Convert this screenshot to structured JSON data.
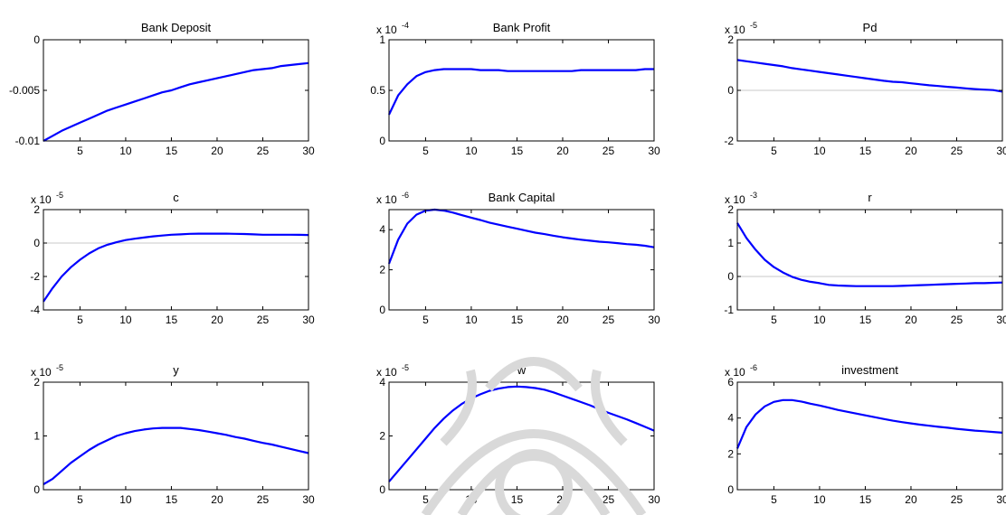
{
  "colors": {
    "line": "#0000ff",
    "zero_line": "#c8c8c8",
    "axes": "#000000",
    "watermark": "#d9d9d9"
  },
  "chart_data": [
    {
      "type": "line",
      "title": "Bank Deposit",
      "exponent": "",
      "xlim": [
        1,
        30
      ],
      "ylim": [
        -0.01,
        0
      ],
      "xticks": [
        "5",
        "10",
        "15",
        "20",
        "25",
        "30"
      ],
      "xtick_values": [
        5,
        10,
        15,
        20,
        25,
        30
      ],
      "yticks": [
        "-0.01",
        "-0.005",
        "0"
      ],
      "ytick_values": [
        -0.01,
        -0.005,
        0
      ],
      "zero_line": false,
      "x": [
        1,
        2,
        3,
        4,
        5,
        6,
        7,
        8,
        9,
        10,
        11,
        12,
        13,
        14,
        15,
        16,
        17,
        18,
        19,
        20,
        21,
        22,
        23,
        24,
        25,
        26,
        27,
        28,
        29,
        30
      ],
      "y": [
        -0.01,
        -0.0095,
        -0.009,
        -0.0086,
        -0.0082,
        -0.0078,
        -0.0074,
        -0.007,
        -0.0067,
        -0.0064,
        -0.0061,
        -0.0058,
        -0.0055,
        -0.0052,
        -0.005,
        -0.0047,
        -0.0044,
        -0.0042,
        -0.004,
        -0.0038,
        -0.0036,
        -0.0034,
        -0.0032,
        -0.003,
        -0.0029,
        -0.0028,
        -0.0026,
        -0.0025,
        -0.0024,
        -0.0023
      ]
    },
    {
      "type": "line",
      "title": "Bank Profit",
      "exponent": "-4",
      "xlim": [
        1,
        30
      ],
      "ylim": [
        0,
        1
      ],
      "xticks": [
        "5",
        "10",
        "15",
        "20",
        "25",
        "30"
      ],
      "xtick_values": [
        5,
        10,
        15,
        20,
        25,
        30
      ],
      "yticks": [
        "0",
        "0.5",
        "1"
      ],
      "ytick_values": [
        0,
        0.5,
        1
      ],
      "zero_line": false,
      "x": [
        1,
        2,
        3,
        4,
        5,
        6,
        7,
        8,
        9,
        10,
        11,
        12,
        13,
        14,
        15,
        16,
        17,
        18,
        19,
        20,
        21,
        22,
        23,
        24,
        25,
        26,
        27,
        28,
        29,
        30
      ],
      "y": [
        0.26,
        0.45,
        0.56,
        0.64,
        0.68,
        0.7,
        0.71,
        0.71,
        0.71,
        0.71,
        0.7,
        0.7,
        0.7,
        0.69,
        0.69,
        0.69,
        0.69,
        0.69,
        0.69,
        0.69,
        0.69,
        0.7,
        0.7,
        0.7,
        0.7,
        0.7,
        0.7,
        0.7,
        0.71,
        0.71
      ]
    },
    {
      "type": "line",
      "title": "Pd",
      "exponent": "-5",
      "xlim": [
        1,
        30
      ],
      "ylim": [
        -2,
        2
      ],
      "xticks": [
        "5",
        "10",
        "15",
        "20",
        "25",
        "30"
      ],
      "xtick_values": [
        5,
        10,
        15,
        20,
        25,
        30
      ],
      "yticks": [
        "-2",
        "0",
        "2"
      ],
      "ytick_values": [
        -2,
        0,
        2
      ],
      "zero_line": true,
      "x": [
        1,
        2,
        3,
        4,
        5,
        6,
        7,
        8,
        9,
        10,
        11,
        12,
        13,
        14,
        15,
        16,
        17,
        18,
        19,
        20,
        21,
        22,
        23,
        24,
        25,
        26,
        27,
        28,
        29,
        30
      ],
      "y": [
        1.2,
        1.15,
        1.1,
        1.05,
        1.0,
        0.95,
        0.88,
        0.83,
        0.78,
        0.73,
        0.68,
        0.63,
        0.58,
        0.53,
        0.48,
        0.43,
        0.38,
        0.34,
        0.32,
        0.28,
        0.24,
        0.2,
        0.17,
        0.14,
        0.11,
        0.08,
        0.05,
        0.03,
        0.01,
        -0.05
      ]
    },
    {
      "type": "line",
      "title": "c",
      "exponent": "-5",
      "xlim": [
        1,
        30
      ],
      "ylim": [
        -4,
        2
      ],
      "xticks": [
        "5",
        "10",
        "15",
        "20",
        "25",
        "30"
      ],
      "xtick_values": [
        5,
        10,
        15,
        20,
        25,
        30
      ],
      "yticks": [
        "-4",
        "-2",
        "0",
        "2"
      ],
      "ytick_values": [
        -4,
        -2,
        0,
        2
      ],
      "zero_line": true,
      "x": [
        1,
        2,
        3,
        4,
        5,
        6,
        7,
        8,
        9,
        10,
        11,
        12,
        13,
        14,
        15,
        16,
        17,
        18,
        19,
        20,
        21,
        22,
        23,
        24,
        25,
        26,
        27,
        28,
        29,
        30
      ],
      "y": [
        -3.5,
        -2.7,
        -2.0,
        -1.45,
        -1.0,
        -0.62,
        -0.32,
        -0.1,
        0.05,
        0.18,
        0.26,
        0.33,
        0.4,
        0.45,
        0.5,
        0.52,
        0.55,
        0.56,
        0.56,
        0.56,
        0.56,
        0.55,
        0.54,
        0.52,
        0.5,
        0.5,
        0.5,
        0.5,
        0.49,
        0.48
      ]
    },
    {
      "type": "line",
      "title": "Bank Capital",
      "exponent": "-6",
      "xlim": [
        1,
        30
      ],
      "ylim": [
        0,
        5
      ],
      "xticks": [
        "5",
        "10",
        "15",
        "20",
        "25",
        "30"
      ],
      "xtick_values": [
        5,
        10,
        15,
        20,
        25,
        30
      ],
      "yticks": [
        "0",
        "2",
        "4"
      ],
      "ytick_values": [
        0,
        2,
        4
      ],
      "zero_line": false,
      "x": [
        1,
        2,
        3,
        4,
        5,
        6,
        7,
        8,
        9,
        10,
        11,
        12,
        13,
        14,
        15,
        16,
        17,
        18,
        19,
        20,
        21,
        22,
        23,
        24,
        25,
        26,
        27,
        28,
        29,
        30
      ],
      "y": [
        2.3,
        3.5,
        4.3,
        4.75,
        4.95,
        5.0,
        4.95,
        4.85,
        4.72,
        4.6,
        4.48,
        4.35,
        4.25,
        4.15,
        4.05,
        3.95,
        3.85,
        3.78,
        3.7,
        3.62,
        3.56,
        3.5,
        3.45,
        3.4,
        3.37,
        3.33,
        3.28,
        3.25,
        3.2,
        3.12
      ]
    },
    {
      "type": "line",
      "title": "r",
      "exponent": "-3",
      "xlim": [
        1,
        30
      ],
      "ylim": [
        -1,
        2
      ],
      "xticks": [
        "5",
        "10",
        "15",
        "20",
        "25",
        "30"
      ],
      "xtick_values": [
        5,
        10,
        15,
        20,
        25,
        30
      ],
      "yticks": [
        "-1",
        "0",
        "1",
        "2"
      ],
      "ytick_values": [
        -1,
        0,
        1,
        2
      ],
      "zero_line": true,
      "x": [
        1,
        2,
        3,
        4,
        5,
        6,
        7,
        8,
        9,
        10,
        11,
        12,
        13,
        14,
        15,
        16,
        17,
        18,
        19,
        20,
        21,
        22,
        23,
        24,
        25,
        26,
        27,
        28,
        29,
        30
      ],
      "y": [
        1.6,
        1.15,
        0.8,
        0.5,
        0.28,
        0.12,
        -0.01,
        -0.1,
        -0.16,
        -0.2,
        -0.25,
        -0.27,
        -0.28,
        -0.29,
        -0.29,
        -0.29,
        -0.29,
        -0.29,
        -0.28,
        -0.27,
        -0.26,
        -0.25,
        -0.24,
        -0.23,
        -0.22,
        -0.21,
        -0.2,
        -0.2,
        -0.19,
        -0.18
      ]
    },
    {
      "type": "line",
      "title": "y",
      "exponent": "-5",
      "xlim": [
        1,
        30
      ],
      "ylim": [
        0,
        2
      ],
      "xticks": [
        "5",
        "10",
        "15",
        "20",
        "25",
        "30"
      ],
      "xtick_values": [
        5,
        10,
        15,
        20,
        25,
        30
      ],
      "yticks": [
        "0",
        "1",
        "2"
      ],
      "ytick_values": [
        0,
        1,
        2
      ],
      "zero_line": false,
      "x": [
        1,
        2,
        3,
        4,
        5,
        6,
        7,
        8,
        9,
        10,
        11,
        12,
        13,
        14,
        15,
        16,
        17,
        18,
        19,
        20,
        21,
        22,
        23,
        24,
        25,
        26,
        27,
        28,
        29,
        30
      ],
      "y": [
        0.1,
        0.2,
        0.35,
        0.5,
        0.62,
        0.74,
        0.84,
        0.92,
        1.0,
        1.05,
        1.09,
        1.12,
        1.14,
        1.15,
        1.15,
        1.15,
        1.13,
        1.11,
        1.08,
        1.05,
        1.02,
        0.98,
        0.95,
        0.91,
        0.87,
        0.84,
        0.8,
        0.76,
        0.72,
        0.68
      ]
    },
    {
      "type": "line",
      "title": "w",
      "exponent": "-5",
      "xlim": [
        1,
        30
      ],
      "ylim": [
        0,
        4
      ],
      "xticks": [
        "5",
        "10",
        "15",
        "20",
        "25",
        "30"
      ],
      "xtick_values": [
        5,
        10,
        15,
        20,
        25,
        30
      ],
      "yticks": [
        "0",
        "2",
        "4"
      ],
      "ytick_values": [
        0,
        2,
        4
      ],
      "zero_line": false,
      "x": [
        1,
        2,
        3,
        4,
        5,
        6,
        7,
        8,
        9,
        10,
        11,
        12,
        13,
        14,
        15,
        16,
        17,
        18,
        19,
        20,
        21,
        22,
        23,
        24,
        25,
        26,
        27,
        28,
        29,
        30
      ],
      "y": [
        0.3,
        0.7,
        1.1,
        1.5,
        1.9,
        2.3,
        2.65,
        2.95,
        3.2,
        3.4,
        3.55,
        3.68,
        3.76,
        3.82,
        3.84,
        3.82,
        3.78,
        3.72,
        3.62,
        3.5,
        3.38,
        3.26,
        3.14,
        3.0,
        2.86,
        2.74,
        2.62,
        2.48,
        2.34,
        2.2
      ]
    },
    {
      "type": "line",
      "title": "investment",
      "exponent": "-6",
      "xlim": [
        1,
        30
      ],
      "ylim": [
        0,
        6
      ],
      "xticks": [
        "5",
        "10",
        "15",
        "20",
        "25",
        "30"
      ],
      "xtick_values": [
        5,
        10,
        15,
        20,
        25,
        30
      ],
      "yticks": [
        "0",
        "2",
        "4",
        "6"
      ],
      "ytick_values": [
        0,
        2,
        4,
        6
      ],
      "zero_line": false,
      "x": [
        1,
        2,
        3,
        4,
        5,
        6,
        7,
        8,
        9,
        10,
        11,
        12,
        13,
        14,
        15,
        16,
        17,
        18,
        19,
        20,
        21,
        22,
        23,
        24,
        25,
        26,
        27,
        28,
        29,
        30
      ],
      "y": [
        2.3,
        3.5,
        4.2,
        4.65,
        4.9,
        5.0,
        5.0,
        4.92,
        4.8,
        4.7,
        4.58,
        4.45,
        4.35,
        4.25,
        4.15,
        4.05,
        3.95,
        3.85,
        3.77,
        3.7,
        3.63,
        3.57,
        3.51,
        3.46,
        3.4,
        3.35,
        3.3,
        3.26,
        3.22,
        3.18
      ]
    }
  ]
}
